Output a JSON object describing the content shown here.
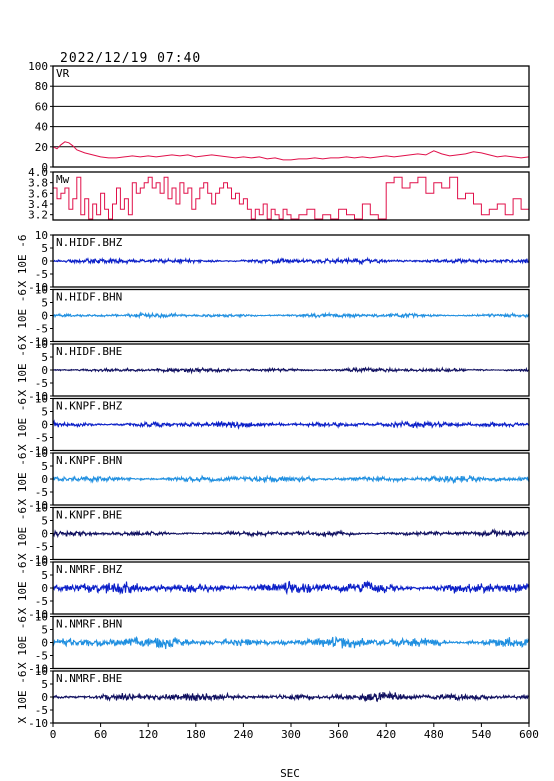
{
  "header": {
    "datetime": "2022/12/19 07:40"
  },
  "x_axis": {
    "label": "SEC",
    "ticks": [
      0,
      60,
      120,
      180,
      240,
      300,
      360,
      420,
      480,
      540,
      600
    ],
    "range": [
      0,
      600
    ]
  },
  "colors": {
    "vr_mw": "#e0104a",
    "bhz": "#0b1fc8",
    "bhn": "#1f8fe0",
    "bhe": "#101060",
    "frame": "#000000"
  },
  "chart_data": [
    {
      "type": "line",
      "name": "VR",
      "title": "VR",
      "ylim": [
        0,
        100
      ],
      "yticks": [
        "100",
        "80",
        "60",
        "40",
        "20",
        "0"
      ],
      "x": [
        0,
        5,
        10,
        15,
        20,
        25,
        30,
        40,
        50,
        60,
        70,
        80,
        90,
        100,
        110,
        120,
        130,
        140,
        150,
        160,
        170,
        180,
        190,
        200,
        210,
        220,
        230,
        240,
        250,
        260,
        270,
        280,
        290,
        300,
        310,
        320,
        330,
        340,
        350,
        360,
        370,
        380,
        390,
        400,
        410,
        420,
        430,
        440,
        450,
        460,
        470,
        480,
        490,
        500,
        510,
        520,
        530,
        540,
        550,
        560,
        570,
        580,
        590,
        600
      ],
      "y": [
        20,
        18,
        22,
        25,
        24,
        21,
        17,
        14,
        12,
        10,
        9,
        9,
        10,
        11,
        10,
        11,
        10,
        11,
        12,
        11,
        12,
        10,
        11,
        12,
        11,
        10,
        9,
        10,
        9,
        10,
        8,
        9,
        7,
        7,
        8,
        8,
        9,
        8,
        9,
        9,
        10,
        9,
        10,
        9,
        10,
        11,
        10,
        11,
        12,
        13,
        12,
        16,
        13,
        11,
        12,
        13,
        15,
        14,
        12,
        10,
        11,
        10,
        9,
        10
      ],
      "color_key": "vr_mw"
    },
    {
      "type": "line",
      "name": "Mw",
      "title": "Mw",
      "ylim": [
        3.1,
        4.0
      ],
      "yticks": [
        "4.0",
        "3.8",
        "3.6",
        "3.4",
        "3.2"
      ],
      "x": [
        0,
        5,
        10,
        15,
        20,
        25,
        30,
        35,
        40,
        45,
        50,
        55,
        60,
        65,
        70,
        75,
        80,
        85,
        90,
        95,
        100,
        105,
        110,
        115,
        120,
        125,
        130,
        135,
        140,
        145,
        150,
        155,
        160,
        165,
        170,
        175,
        180,
        185,
        190,
        195,
        200,
        205,
        210,
        215,
        220,
        225,
        230,
        235,
        240,
        245,
        250,
        255,
        260,
        265,
        270,
        275,
        280,
        285,
        290,
        295,
        300,
        310,
        320,
        330,
        340,
        350,
        360,
        370,
        380,
        390,
        400,
        410,
        420,
        430,
        440,
        450,
        460,
        470,
        480,
        490,
        500,
        510,
        520,
        530,
        540,
        550,
        560,
        570,
        580,
        590,
        600
      ],
      "y": [
        3.7,
        3.5,
        3.6,
        3.7,
        3.3,
        3.5,
        3.9,
        3.2,
        3.5,
        3.1,
        3.4,
        3.2,
        3.6,
        3.3,
        3.1,
        3.4,
        3.7,
        3.3,
        3.5,
        3.2,
        3.8,
        3.6,
        3.7,
        3.8,
        3.9,
        3.7,
        3.8,
        3.6,
        3.9,
        3.5,
        3.7,
        3.4,
        3.8,
        3.6,
        3.7,
        3.3,
        3.5,
        3.7,
        3.8,
        3.6,
        3.4,
        3.6,
        3.7,
        3.8,
        3.7,
        3.5,
        3.6,
        3.4,
        3.5,
        3.3,
        3.1,
        3.3,
        3.2,
        3.4,
        3.1,
        3.3,
        3.2,
        3.1,
        3.3,
        3.2,
        3.1,
        3.2,
        3.3,
        3.1,
        3.2,
        3.1,
        3.3,
        3.2,
        3.1,
        3.4,
        3.2,
        3.1,
        3.8,
        3.9,
        3.7,
        3.8,
        3.9,
        3.6,
        3.8,
        3.7,
        3.9,
        3.5,
        3.6,
        3.4,
        3.2,
        3.3,
        3.4,
        3.2,
        3.5,
        3.3,
        3.6
      ],
      "color_key": "vr_mw"
    },
    {
      "type": "line",
      "name": "N.HIDF.BHZ",
      "title": "N.HIDF.BHZ",
      "ylim": [
        -10,
        10
      ],
      "yticks": [
        "10",
        "5",
        "0",
        "-5",
        "-10"
      ],
      "ylabel": "X 10E -6",
      "amplitude": 1.2,
      "color_key": "bhz"
    },
    {
      "type": "line",
      "name": "N.HIDF.BHN",
      "title": "N.HIDF.BHN",
      "ylim": [
        -10,
        10
      ],
      "yticks": [
        "10",
        "5",
        "0",
        "-5",
        "-10"
      ],
      "ylabel": "X 10E -6",
      "amplitude": 1.0,
      "color_key": "bhn"
    },
    {
      "type": "line",
      "name": "N.HIDF.BHE",
      "title": "N.HIDF.BHE",
      "ylim": [
        -10,
        10
      ],
      "yticks": [
        "10",
        "5",
        "0",
        "-5",
        "-10"
      ],
      "ylabel": "X 10E -6",
      "amplitude": 1.0,
      "color_key": "bhe"
    },
    {
      "type": "line",
      "name": "N.KNPF.BHZ",
      "title": "N.KNPF.BHZ",
      "ylim": [
        -10,
        10
      ],
      "yticks": [
        "10",
        "5",
        "0",
        "-5",
        "-10"
      ],
      "ylabel": "X 10E -6",
      "amplitude": 1.5,
      "color_key": "bhz"
    },
    {
      "type": "line",
      "name": "N.KNPF.BHN",
      "title": "N.KNPF.BHN",
      "ylim": [
        -10,
        10
      ],
      "yticks": [
        "10",
        "5",
        "0",
        "-5",
        "-10"
      ],
      "ylabel": "X 10E -6",
      "amplitude": 1.5,
      "color_key": "bhn"
    },
    {
      "type": "line",
      "name": "N.KNPF.BHE",
      "title": "N.KNPF.BHE",
      "ylim": [
        -10,
        10
      ],
      "yticks": [
        "10",
        "5",
        "0",
        "-5",
        "-10"
      ],
      "ylabel": "X 10E -6",
      "amplitude": 1.2,
      "color_key": "bhe"
    },
    {
      "type": "line",
      "name": "N.NMRF.BHZ",
      "title": "N.NMRF.BHZ",
      "ylim": [
        -10,
        10
      ],
      "yticks": [
        "10",
        "5",
        "0",
        "-5",
        "-10"
      ],
      "ylabel": "X 10E -6",
      "amplitude": 2.8,
      "color_key": "bhz"
    },
    {
      "type": "line",
      "name": "N.NMRF.BHN",
      "title": "N.NMRF.BHN",
      "ylim": [
        -10,
        10
      ],
      "yticks": [
        "10",
        "5",
        "0",
        "-5",
        "-10"
      ],
      "ylabel": "X 10E -6",
      "amplitude": 2.6,
      "color_key": "bhn"
    },
    {
      "type": "line",
      "name": "N.NMRF.BHE",
      "title": "N.NMRF.BHE",
      "ylim": [
        -10,
        10
      ],
      "yticks": [
        "10",
        "5",
        "0",
        "-5",
        "-10"
      ],
      "ylabel": "X 10E -6",
      "amplitude": 2.0,
      "color_key": "bhe"
    }
  ]
}
